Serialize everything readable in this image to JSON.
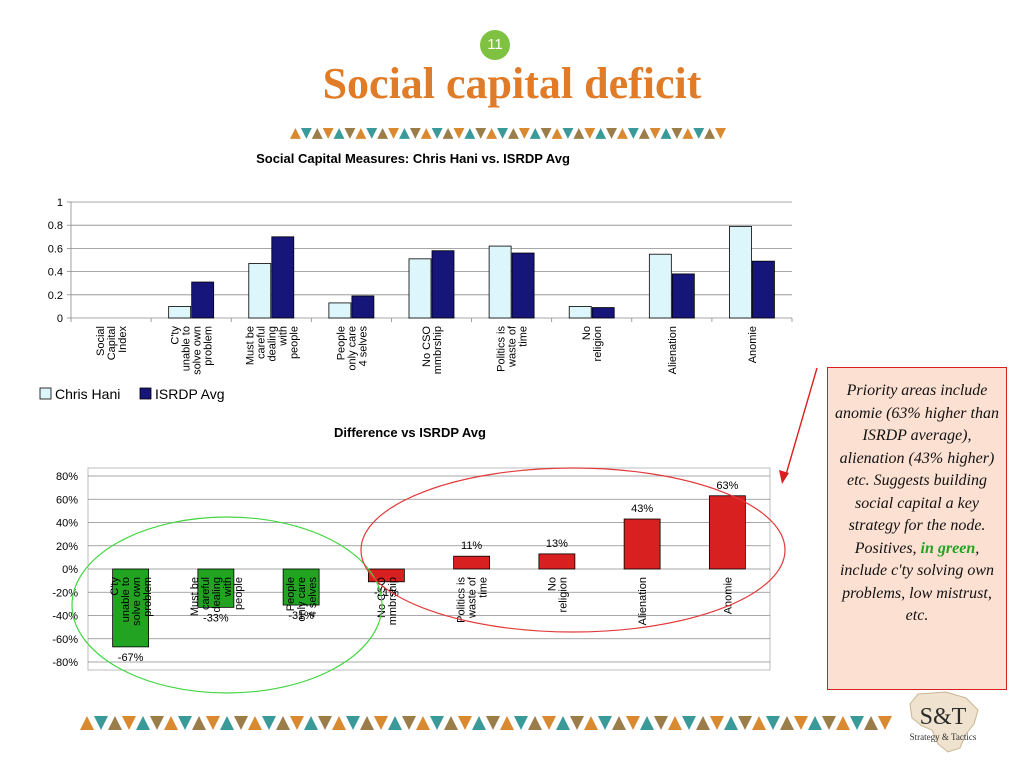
{
  "slide": {
    "number": "11",
    "title": "Social capital deficit",
    "callout": {
      "before": "Priority areas include anomie (63% higher than ISRDP average), alienation (43% higher) etc. Suggests building social capital a key strategy for the node. Positives, ",
      "highlight": "in green",
      "after": ", include c'ty solving own problems, low mistrust, etc."
    },
    "logo": {
      "main": "S&T",
      "tagline": "Strategy & Tactics"
    },
    "colors": {
      "title": "#e07b27",
      "badge": "#7fc241",
      "positive": "#22a322",
      "negative": "#d92020"
    }
  },
  "chart_data": [
    {
      "type": "bar",
      "title": "Social Capital Measures: Chris Hani vs. ISRDP Avg",
      "categories": [
        [
          "Social",
          "Capital",
          "Index"
        ],
        [
          "C'ty",
          "unable to",
          "solve own",
          "problem"
        ],
        [
          "Must be",
          "careful",
          "dealing",
          "with",
          "people"
        ],
        [
          "People",
          "only care",
          "4 selves"
        ],
        [
          "No CSO",
          "mmbrship"
        ],
        [
          "Politics is",
          "waste of",
          "time"
        ],
        [
          "No",
          "religion"
        ],
        [
          "Alienation"
        ],
        [
          "Anomie"
        ]
      ],
      "series": [
        {
          "name": "Chris Hani",
          "color": "#ddf6fb",
          "values": [
            0,
            0.1,
            0.47,
            0.13,
            0.51,
            0.62,
            0.1,
            0.55,
            0.79
          ]
        },
        {
          "name": "ISRDP Avg",
          "color": "#15157a",
          "values": [
            0,
            0.31,
            0.7,
            0.19,
            0.58,
            0.56,
            0.09,
            0.38,
            0.49
          ]
        }
      ],
      "ylim": [
        0,
        1
      ],
      "yticks": [
        "1",
        "0.8",
        "0.6",
        "0.4",
        "0.2",
        "0"
      ],
      "grid": true,
      "legend": "bottom-left"
    },
    {
      "type": "bar",
      "title": "Difference vs ISRDP Avg",
      "categories": [
        [
          "C'ty",
          "unable to",
          "solve own",
          "problem"
        ],
        [
          "Must be",
          "careful",
          "dealing",
          "with",
          "people"
        ],
        [
          "People",
          "only care",
          "4 selves"
        ],
        [
          "No CSO",
          "mmbrship"
        ],
        [
          "Politics is",
          "waste of",
          "time"
        ],
        [
          "No",
          "religion"
        ],
        [
          "Alienation"
        ],
        [
          "Anomie"
        ]
      ],
      "values": [
        -67,
        -33,
        -31,
        -11,
        11,
        13,
        43,
        63
      ],
      "data_labels": [
        "-67%",
        "-33%",
        "-31%",
        "-11%",
        "11%",
        "13%",
        "43%",
        "63%"
      ],
      "bar_colors": [
        "#22a322",
        "#22a322",
        "#22a322",
        "#d92020",
        "#d92020",
        "#d92020",
        "#d92020",
        "#d92020"
      ],
      "ylim": [
        -80,
        80
      ],
      "yticks": [
        "80%",
        "60%",
        "40%",
        "20%",
        "0%",
        "-20%",
        "-40%",
        "-60%",
        "-80%"
      ],
      "grid": true,
      "legend": "none"
    }
  ]
}
